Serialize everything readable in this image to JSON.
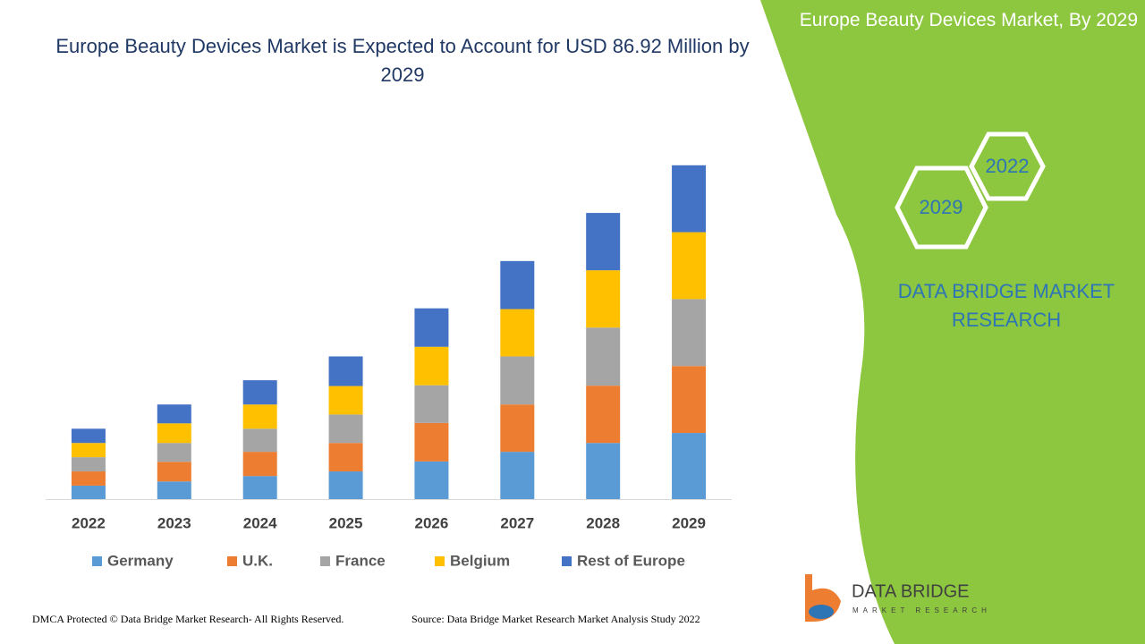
{
  "chart_data": {
    "type": "stacked-bar",
    "title": "Europe Beauty Devices Market is Expected to Account for USD 86.92 Million by 2029",
    "categories": [
      "2022",
      "2023",
      "2024",
      "2025",
      "2026",
      "2027",
      "2028",
      "2029"
    ],
    "series": [
      {
        "name": "Germany",
        "color": "#5b9bd5",
        "values": [
          3.5,
          4.6,
          6.0,
          7.2,
          9.8,
          12.3,
          14.6,
          17.2
        ]
      },
      {
        "name": "U.K.",
        "color": "#ed7d31",
        "values": [
          3.7,
          5.1,
          6.3,
          7.4,
          10.0,
          12.3,
          14.9,
          17.4
        ]
      },
      {
        "name": "France",
        "color": "#a5a5a5",
        "values": [
          3.7,
          4.9,
          6.0,
          7.4,
          9.8,
          12.5,
          15.1,
          17.4
        ]
      },
      {
        "name": "Belgium",
        "color": "#ffc000",
        "values": [
          3.7,
          5.1,
          6.3,
          7.4,
          10.0,
          12.3,
          14.9,
          17.4
        ]
      },
      {
        "name": "Rest of Europe",
        "color": "#4472c4",
        "values": [
          3.7,
          4.9,
          6.3,
          7.7,
          10.0,
          12.5,
          14.9,
          17.4
        ]
      }
    ],
    "ylim": [
      0,
      100
    ]
  },
  "panel": {
    "title": "Europe Beauty Devices Market, By 2029",
    "hex_top": "2022",
    "hex_bottom": "2029",
    "brand": "DATA BRIDGE MARKET RESEARCH"
  },
  "logo": {
    "name": "DATA BRIDGE",
    "tagline": "MARKET RESEARCH"
  },
  "footer": {
    "copyright": "DMCA Protected © Data Bridge Market Research- All Rights Reserved.",
    "source": "Source: Data Bridge Market Research Market Analysis Study 2022"
  }
}
